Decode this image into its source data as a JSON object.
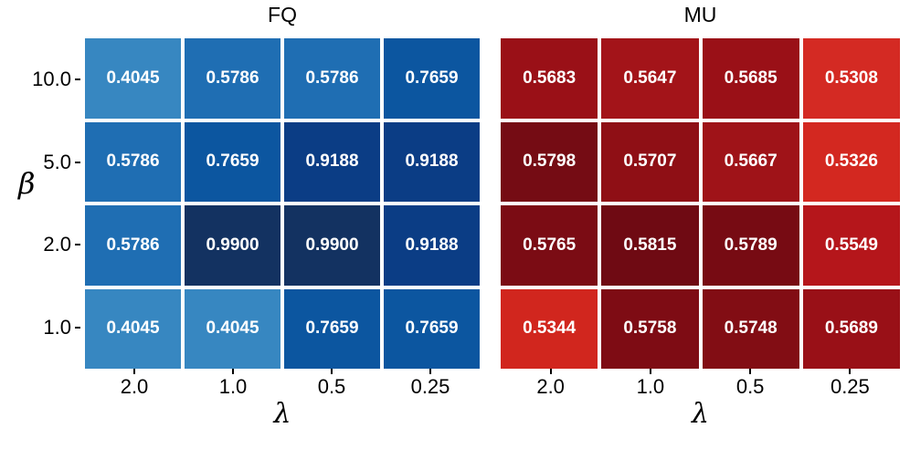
{
  "background": "#ffffff",
  "chart_data": [
    {
      "type": "heatmap",
      "title": "FQ",
      "xlabel": "λ",
      "ylabel": "β",
      "colormap": "Blues",
      "value_labels": true,
      "value_text_color": "#ffffff",
      "columns": [
        "2.0",
        "1.0",
        "0.5",
        "0.25"
      ],
      "rows": [
        "10.0",
        "5.0",
        "2.0",
        "1.0"
      ],
      "values": [
        [
          0.4045,
          0.5786,
          0.5786,
          0.7659
        ],
        [
          0.5786,
          0.7659,
          0.9188,
          0.9188
        ],
        [
          0.5786,
          0.99,
          0.99,
          0.9188
        ],
        [
          0.4045,
          0.4045,
          0.7659,
          0.7659
        ]
      ],
      "cell_colors": [
        [
          "#3787c1",
          "#1f6eb3",
          "#1f6eb3",
          "#0c56a0"
        ],
        [
          "#1f6eb3",
          "#0c56a0",
          "#0b3d85",
          "#0b3d85"
        ],
        [
          "#1f6eb3",
          "#133261",
          "#133261",
          "#0b3d85"
        ],
        [
          "#3787c1",
          "#3787c1",
          "#0c56a0",
          "#0c56a0"
        ]
      ]
    },
    {
      "type": "heatmap",
      "title": "MU",
      "xlabel": "λ",
      "ylabel": "β",
      "colormap": "Reds",
      "value_labels": true,
      "value_text_color": "#ffffff",
      "columns": [
        "2.0",
        "1.0",
        "0.5",
        "0.25"
      ],
      "rows": [
        "10.0",
        "5.0",
        "2.0",
        "1.0"
      ],
      "values": [
        [
          0.5683,
          0.5647,
          0.5685,
          0.5308
        ],
        [
          0.5798,
          0.5707,
          0.5667,
          0.5326
        ],
        [
          0.5765,
          0.5815,
          0.5789,
          0.5549
        ],
        [
          0.5344,
          0.5758,
          0.5748,
          0.5689
        ]
      ],
      "cell_colors": [
        [
          "#9a1017",
          "#a31419",
          "#9a1017",
          "#d42a23"
        ],
        [
          "#750c14",
          "#8f0f15",
          "#9f1318",
          "#d32820"
        ],
        [
          "#7b0c14",
          "#6f0a13",
          "#770b13",
          "#b5161b"
        ],
        [
          "#d1261e",
          "#7e0c14",
          "#820d14",
          "#991017"
        ]
      ]
    }
  ]
}
